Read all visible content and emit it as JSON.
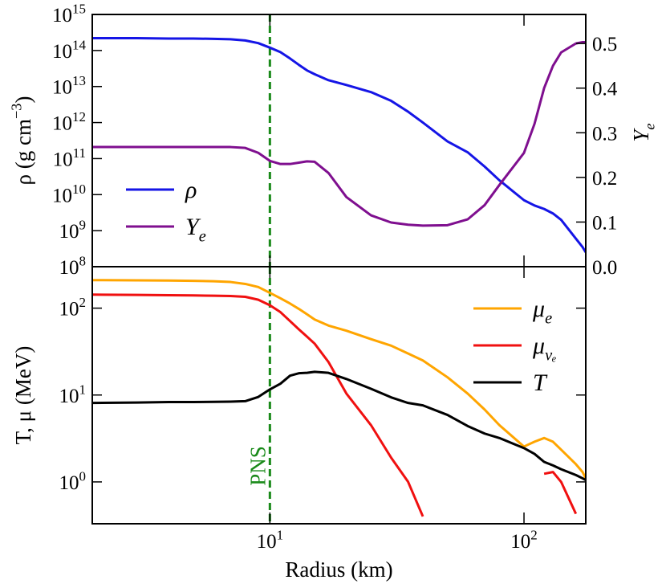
{
  "chart_data": [
    {
      "type": "line",
      "ylabel": "ρ (g cm^{−3})",
      "y2label": "Y_{e}",
      "xscale": "log",
      "yscale": "log",
      "xlim": [
        2,
        175
      ],
      "ylim": [
        100000000.0,
        1000000000000000.0
      ],
      "yticks": [
        {
          "value": 100000000.0,
          "label": "10^{8}"
        },
        {
          "value": 1000000000.0,
          "label": "10^{9}"
        },
        {
          "value": 10000000000.0,
          "label": "10^{10}"
        },
        {
          "value": 100000000000.0,
          "label": "10^{11}"
        },
        {
          "value": 1000000000000.0,
          "label": "10^{12}"
        },
        {
          "value": 10000000000000.0,
          "label": "10^{13}"
        },
        {
          "value": 100000000000000.0,
          "label": "10^{14}"
        },
        {
          "value": 1000000000000000.0,
          "label": "10^{15}"
        }
      ],
      "y2lim": [
        0,
        0.565
      ],
      "y2ticks": [
        {
          "value": 0,
          "label": "0.0"
        },
        0.1,
        0.2,
        0.3,
        0.4,
        0.5
      ],
      "legend": "lower left",
      "vline": {
        "x": 10,
        "color": "#1a8a1a"
      },
      "x": [
        2,
        3,
        4,
        5,
        6,
        7,
        8,
        9,
        10,
        11,
        12,
        13,
        14,
        15,
        17,
        20,
        25,
        30,
        35,
        40,
        50,
        60,
        70,
        80,
        100,
        110,
        120,
        130,
        140,
        160,
        170,
        175
      ],
      "series": [
        {
          "name": "ρ",
          "color": "#1515e6",
          "values": [
            220000000000000.0,
            220000000000000.0,
            215000000000000.0,
            215000000000000.0,
            210000000000000.0,
            205000000000000.0,
            190000000000000.0,
            160000000000000.0,
            120000000000000.0,
            90000000000000.0,
            60000000000000.0,
            40000000000000.0,
            28000000000000.0,
            22000000000000.0,
            15000000000000.0,
            11000000000000.0,
            7000000000000.0,
            4000000000000.0,
            2000000000000.0,
            1000000000000.0,
            300000000000.0,
            150000000000.0,
            60000000000.0,
            25000000000.0,
            7000000000.0,
            5000000000.0,
            4000000000.0,
            3000000000.0,
            2000000000.0,
            600000000.0,
            350000000.0,
            250000000.0
          ]
        },
        {
          "name": "Y_{e}",
          "color": "#7f0f8f",
          "axis": "y2",
          "values": [
            0.268,
            0.268,
            0.268,
            0.268,
            0.268,
            0.268,
            0.266,
            0.255,
            0.237,
            0.23,
            0.23,
            0.233,
            0.236,
            0.235,
            0.21,
            0.156,
            0.115,
            0.099,
            0.094,
            0.092,
            0.093,
            0.106,
            0.138,
            0.183,
            0.255,
            0.32,
            0.4,
            0.45,
            0.48,
            0.5,
            0.503,
            0.503
          ]
        }
      ]
    },
    {
      "type": "line",
      "xlabel": "Radius (km)",
      "ylabel": "T, μ (MeV)",
      "xscale": "log",
      "yscale": "log",
      "xlim": [
        2,
        175
      ],
      "xticks": [
        {
          "value": 10,
          "label": "10^{1}"
        },
        {
          "value": 100,
          "label": "10^{2}"
        }
      ],
      "ylim": [
        0.33,
        300
      ],
      "yticks": [
        {
          "value": 1,
          "label": "10^{0}"
        },
        {
          "value": 10,
          "label": "10^{1}"
        },
        {
          "value": 100,
          "label": "10^{2}"
        }
      ],
      "legend": "upper right",
      "vline": {
        "x": 10,
        "color": "#1a8a1a"
      },
      "annotation": "PNS",
      "x": [
        2,
        3,
        4,
        5,
        6,
        7,
        8,
        9,
        10,
        11,
        12,
        13,
        14,
        15,
        17,
        20,
        25,
        30,
        35,
        40,
        50,
        60,
        70,
        80,
        100,
        110,
        120,
        130,
        140,
        160,
        170,
        175
      ],
      "series": [
        {
          "name": "μ_{e}",
          "color": "#ffa500",
          "values": [
            210,
            209,
            208,
            206,
            204,
            200,
            190,
            175,
            150,
            130,
            113,
            98,
            85,
            74,
            63,
            55,
            44,
            37,
            30,
            25,
            16,
            10.4,
            6.8,
            4.5,
            2.55,
            2.9,
            3.2,
            2.9,
            2.35,
            1.6,
            1.3,
            1.1
          ]
        },
        {
          "name": "μ_{νₑ}",
          "color": "#f01010",
          "values": [
            143,
            142,
            141,
            140,
            139,
            138,
            135,
            125,
            108,
            90,
            71,
            57,
            47,
            39,
            24,
            10.4,
            4.5,
            1.9,
            1.0,
            0.4,
            null,
            null,
            null,
            null,
            null,
            null,
            1.24,
            1.3,
            1.0,
            0.43,
            null,
            null
          ]
        },
        {
          "name": "T",
          "color": "#000000",
          "values": [
            8.1,
            8.2,
            8.3,
            8.3,
            8.35,
            8.4,
            8.5,
            9.5,
            11.6,
            13.5,
            16.7,
            17.8,
            18,
            18.5,
            18,
            15.3,
            11.8,
            9.4,
            8.1,
            7.6,
            5.9,
            4.4,
            3.6,
            3.2,
            2.45,
            2.1,
            1.7,
            1.55,
            1.4,
            1.2,
            1.1,
            1.05
          ]
        }
      ]
    }
  ]
}
